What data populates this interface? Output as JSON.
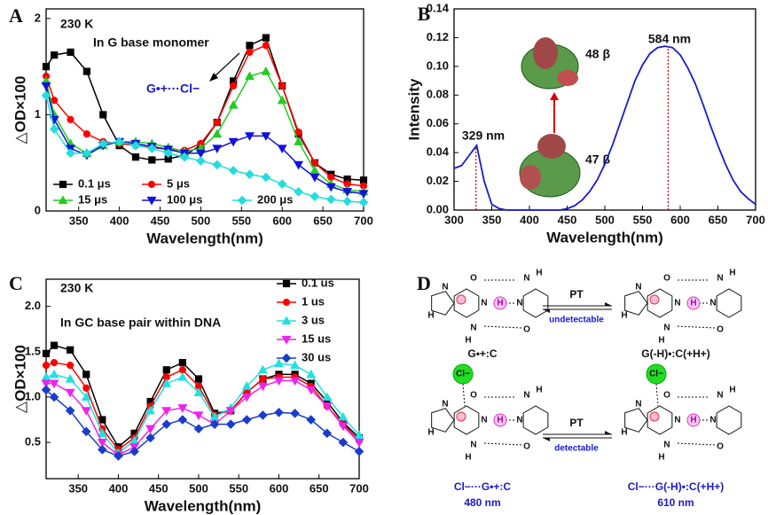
{
  "chart_data": [
    {
      "type": "line",
      "panel": "A",
      "xlabel": "Wavelength(nm)",
      "ylabel": "△OD×100",
      "annotations": [
        "230 K",
        "In G base monomer",
        "G•+···Cl−"
      ],
      "x": [
        310,
        320,
        340,
        360,
        380,
        400,
        420,
        440,
        460,
        480,
        500,
        520,
        540,
        560,
        580,
        600,
        620,
        640,
        660,
        680,
        700
      ],
      "xlim": [
        310,
        700
      ],
      "xticks": [
        350,
        400,
        450,
        500,
        550,
        600,
        650,
        700
      ],
      "ylim": [
        0,
        2.1
      ],
      "yticks": [
        0,
        1,
        2
      ],
      "series": [
        {
          "name": "0.1 μs",
          "color": "#000000",
          "marker": "square",
          "values": [
            1.5,
            1.62,
            1.65,
            1.45,
            1.0,
            0.68,
            0.56,
            0.53,
            0.54,
            0.58,
            0.68,
            0.92,
            1.35,
            1.72,
            1.8,
            1.3,
            0.8,
            0.5,
            0.38,
            0.33,
            0.32
          ]
        },
        {
          "name": "5 μs",
          "color": "#ff0000",
          "marker": "circle",
          "values": [
            1.4,
            1.15,
            0.95,
            0.8,
            0.72,
            0.7,
            0.68,
            0.66,
            0.64,
            0.63,
            0.7,
            0.92,
            1.3,
            1.65,
            1.72,
            1.3,
            0.82,
            0.5,
            0.35,
            0.28,
            0.26
          ]
        },
        {
          "name": "15 μs",
          "color": "#22cc22",
          "marker": "triangle-up",
          "values": [
            1.35,
            1.0,
            0.7,
            0.6,
            0.68,
            0.72,
            0.72,
            0.7,
            0.66,
            0.62,
            0.65,
            0.8,
            1.1,
            1.4,
            1.45,
            1.15,
            0.72,
            0.42,
            0.28,
            0.22,
            0.2
          ]
        },
        {
          "name": "100 μs",
          "color": "#1010dd",
          "marker": "triangle-down",
          "values": [
            1.3,
            0.95,
            0.65,
            0.58,
            0.68,
            0.72,
            0.7,
            0.67,
            0.64,
            0.6,
            0.6,
            0.65,
            0.72,
            0.78,
            0.78,
            0.65,
            0.48,
            0.35,
            0.25,
            0.2,
            0.18
          ]
        },
        {
          "name": "200 μs",
          "color": "#22dddd",
          "marker": "diamond",
          "values": [
            1.2,
            0.85,
            0.6,
            0.6,
            0.7,
            0.72,
            0.68,
            0.65,
            0.6,
            0.56,
            0.52,
            0.48,
            0.42,
            0.38,
            0.35,
            0.28,
            0.2,
            0.15,
            0.12,
            0.1,
            0.09
          ]
        }
      ]
    },
    {
      "type": "line",
      "panel": "B",
      "xlabel": "Wavelength(nm)",
      "ylabel": "Intensity",
      "annotations": [
        "48 β",
        "47 β"
      ],
      "peaks": [
        329,
        584
      ],
      "peak_labels": [
        "329 nm",
        "584 nm"
      ],
      "x": [
        300,
        310,
        320,
        330,
        340,
        350,
        360,
        370,
        380,
        390,
        400,
        410,
        420,
        430,
        440,
        450,
        460,
        470,
        480,
        490,
        500,
        510,
        520,
        530,
        540,
        550,
        560,
        570,
        580,
        590,
        600,
        610,
        620,
        630,
        640,
        650,
        660,
        670,
        680,
        690,
        700
      ],
      "xlim": [
        300,
        700
      ],
      "xticks": [
        300,
        350,
        400,
        450,
        500,
        550,
        600,
        650,
        700
      ],
      "ylim": [
        0,
        0.14
      ],
      "yticks": [
        {
          "value": 0,
          "label": "0.00"
        },
        {
          "value": 0.02,
          "label": "0.02"
        },
        {
          "value": 0.04,
          "label": "0.04"
        },
        {
          "value": 0.06,
          "label": "0.06"
        },
        {
          "value": 0.08,
          "label": "0.08"
        },
        {
          "value": 0.1,
          "label": "0.10"
        },
        {
          "value": 0.12,
          "label": "0.12"
        },
        {
          "value": 0.14,
          "label": "0.14"
        }
      ],
      "series": [
        {
          "name": null,
          "color": "#1a1acc",
          "marker": "none",
          "values": [
            0.029,
            0.031,
            0.038,
            0.045,
            0.02,
            0.004,
            0.001,
            0,
            0,
            0,
            0,
            0,
            0,
            0,
            0,
            0.001,
            0.003,
            0.007,
            0.013,
            0.021,
            0.032,
            0.045,
            0.06,
            0.075,
            0.09,
            0.101,
            0.109,
            0.113,
            0.114,
            0.113,
            0.108,
            0.099,
            0.088,
            0.074,
            0.059,
            0.045,
            0.032,
            0.021,
            0.013,
            0.008,
            0.004
          ]
        }
      ]
    },
    {
      "type": "line",
      "panel": "C",
      "xlabel": "Wavelength(nm)",
      "ylabel": "△OD×100",
      "annotations": [
        "230 K",
        "In GC base pair within DNA"
      ],
      "x": [
        310,
        320,
        340,
        360,
        380,
        400,
        420,
        440,
        460,
        480,
        500,
        520,
        540,
        560,
        580,
        600,
        620,
        640,
        660,
        680,
        700
      ],
      "xlim": [
        310,
        700
      ],
      "xticks": [
        350,
        400,
        450,
        500,
        550,
        600,
        650,
        700
      ],
      "ylim": [
        0.1,
        2.3
      ],
      "yticks": [
        0.5,
        {
          "value": 1,
          "label": "1.0"
        },
        1.5,
        {
          "value": 2,
          "label": "2.0"
        }
      ],
      "series": [
        {
          "name": "0.1 us",
          "color": "#000000",
          "marker": "square",
          "values": [
            1.48,
            1.57,
            1.52,
            1.25,
            0.75,
            0.45,
            0.6,
            0.95,
            1.3,
            1.38,
            1.2,
            0.82,
            0.85,
            1.05,
            1.2,
            1.25,
            1.25,
            1.15,
            0.95,
            0.72,
            0.55
          ]
        },
        {
          "name": "1 us",
          "color": "#ff0000",
          "marker": "circle",
          "values": [
            1.35,
            1.38,
            1.35,
            1.1,
            0.65,
            0.42,
            0.55,
            0.9,
            1.22,
            1.3,
            1.12,
            0.8,
            0.85,
            1.05,
            1.2,
            1.22,
            1.22,
            1.12,
            0.9,
            0.7,
            0.52
          ]
        },
        {
          "name": "3 us",
          "color": "#22e0e0",
          "marker": "triangle-up",
          "values": [
            1.22,
            1.25,
            1.2,
            1.0,
            0.6,
            0.38,
            0.52,
            0.85,
            1.15,
            1.22,
            1.05,
            0.78,
            0.88,
            1.12,
            1.3,
            1.37,
            1.35,
            1.25,
            1.0,
            0.78,
            0.58
          ]
        },
        {
          "name": "15 us",
          "color": "#ee22ee",
          "marker": "triangle-down",
          "values": [
            1.15,
            1.15,
            1.05,
            0.85,
            0.5,
            0.36,
            0.45,
            0.65,
            0.85,
            0.88,
            0.8,
            0.7,
            0.85,
            1.0,
            1.12,
            1.18,
            1.18,
            1.08,
            0.9,
            0.68,
            0.5
          ]
        },
        {
          "name": "30 us",
          "color": "#1a3ccc",
          "marker": "diamond",
          "values": [
            1.08,
            1.0,
            0.85,
            0.62,
            0.42,
            0.35,
            0.4,
            0.55,
            0.7,
            0.75,
            0.65,
            0.7,
            0.7,
            0.75,
            0.8,
            0.83,
            0.82,
            0.75,
            0.6,
            0.5,
            0.4
          ]
        }
      ]
    }
  ],
  "diagram": {
    "panel": "D",
    "reactions": [
      {
        "label": "PT",
        "note": "undetectable"
      },
      {
        "label": "PT",
        "note": "detectable"
      }
    ],
    "structures": [
      {
        "name": "G•+:C",
        "atoms": [
          "N",
          "H",
          "O",
          "N",
          "N",
          "H",
          "N",
          "O",
          "N",
          "H",
          "H"
        ]
      },
      {
        "name": "G(-H)•:C(+H+)",
        "atoms": [
          "N",
          "H",
          "O",
          "N",
          "N",
          "H",
          "N",
          "O",
          "N",
          "H",
          "H"
        ]
      },
      {
        "name": "Cl−···G•+:C",
        "chloride": "Cl−",
        "band": "480 nm",
        "atoms": [
          "N",
          "H",
          "O",
          "N",
          "N",
          "H",
          "N",
          "O",
          "N",
          "H",
          "H"
        ]
      },
      {
        "name": "Cl−···G(-H)•:C(+H+)",
        "chloride": "Cl−",
        "band": "610 nm",
        "atoms": [
          "N",
          "H",
          "O",
          "N",
          "N",
          "H",
          "N",
          "O",
          "N",
          "H",
          "H"
        ]
      }
    ]
  }
}
